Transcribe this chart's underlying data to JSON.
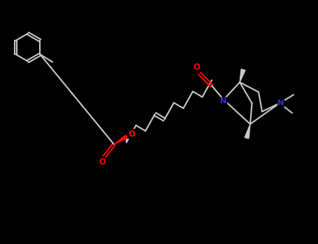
{
  "background_color": "#000000",
  "bond_color": "#c8c8c8",
  "atom_colors": {
    "O": "#ff0000",
    "N": "#3232cd",
    "C": "#c8c8c8"
  },
  "figsize": [
    4.55,
    3.5
  ],
  "dpi": 100,
  "lw": 1.5
}
